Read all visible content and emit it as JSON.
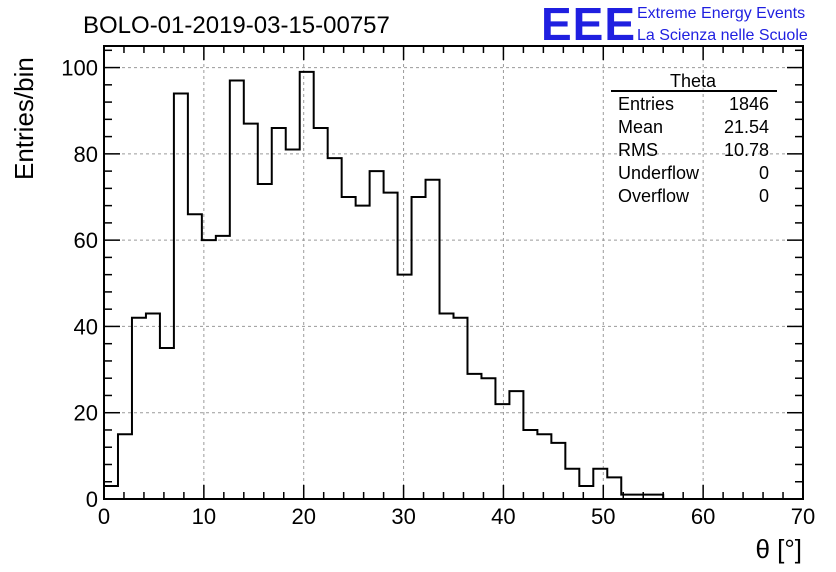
{
  "chart_data": {
    "type": "histogram",
    "title": "BOLO-01-2019-03-15-00757",
    "xlabel": "θ [°]",
    "ylabel": "Entries/bin",
    "xlim": [
      0,
      70
    ],
    "ylim": [
      0,
      105
    ],
    "grid": true,
    "bin_width": 1.4,
    "x_ticks": [
      0,
      10,
      20,
      30,
      40,
      50,
      60,
      70
    ],
    "y_ticks": [
      0,
      20,
      40,
      60,
      80,
      100
    ],
    "bin_low_edges": [
      0,
      1.4,
      2.8,
      4.2,
      5.6,
      7.0,
      8.4,
      9.8,
      11.2,
      12.6,
      14.0,
      15.4,
      16.8,
      18.2,
      19.6,
      21.0,
      22.4,
      23.8,
      25.2,
      26.6,
      28.0,
      29.4,
      30.8,
      32.2,
      33.6,
      35.0,
      36.4,
      37.8,
      39.2,
      40.6,
      42.0,
      43.4,
      44.8,
      46.2,
      47.6,
      49.0,
      50.4,
      51.8,
      53.2,
      54.6
    ],
    "counts": [
      3,
      15,
      42,
      43,
      35,
      94,
      66,
      60,
      61,
      97,
      87,
      73,
      86,
      81,
      99,
      86,
      79,
      70,
      68,
      76,
      71,
      52,
      70,
      74,
      43,
      42,
      29,
      28,
      22,
      25,
      16,
      15,
      13,
      7,
      3,
      7,
      5,
      1,
      1,
      1
    ],
    "stats": {
      "name": "Theta",
      "rows": [
        {
          "label": "Entries",
          "value": "1846"
        },
        {
          "label": "Mean",
          "value": "21.54"
        },
        {
          "label": "RMS",
          "value": "10.78"
        },
        {
          "label": "Underflow",
          "value": "0"
        },
        {
          "label": "Overflow",
          "value": "0"
        }
      ]
    }
  },
  "logo": {
    "mark": "EEE",
    "line1": "Extreme Energy Events",
    "line2": "La Scienza nelle Scuole",
    "color": "#1f1fe0"
  }
}
